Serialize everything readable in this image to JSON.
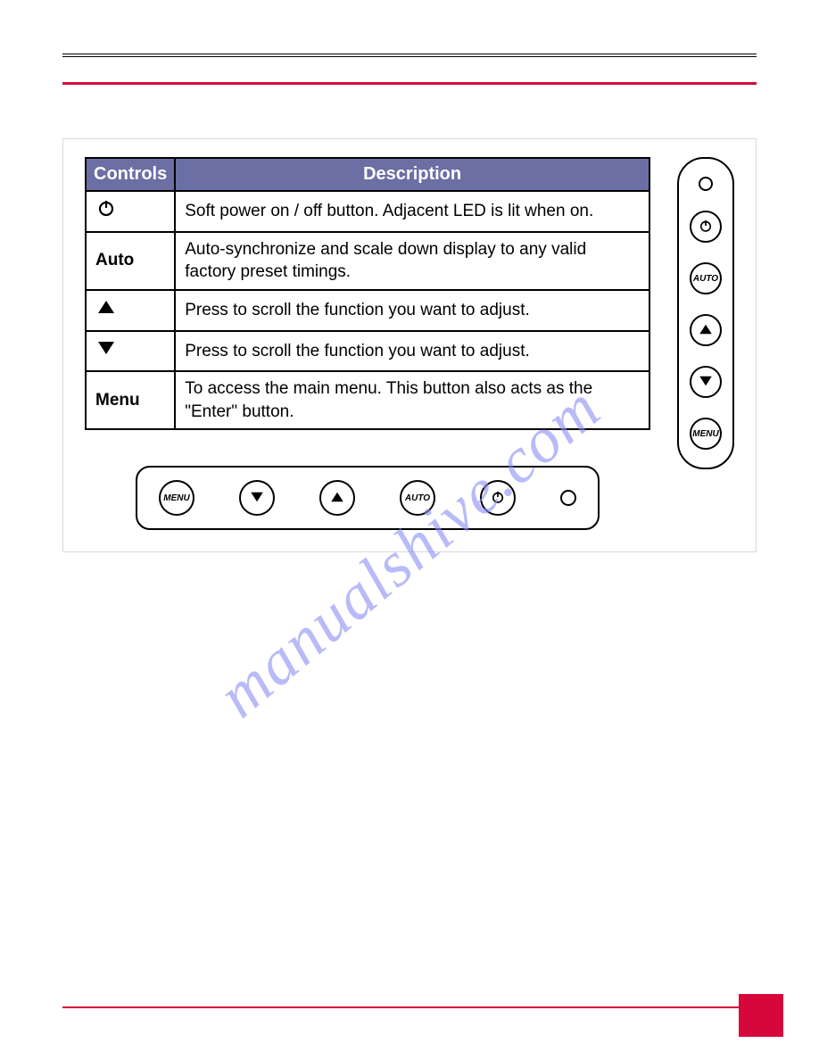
{
  "watermark": "manualshive.com",
  "table": {
    "headers": {
      "controls": "Controls",
      "description": "Description"
    },
    "rows": [
      {
        "control_type": "power",
        "label": "",
        "desc": "Soft power on / off button. Adjacent LED is lit when on."
      },
      {
        "control_type": "text",
        "label": "Auto",
        "desc": "Auto-synchronize and scale down display to any valid factory preset timings."
      },
      {
        "control_type": "up",
        "label": "",
        "desc": "Press to scroll the function you want to adjust."
      },
      {
        "control_type": "down",
        "label": "",
        "desc": "Press to scroll the function you want to adjust."
      },
      {
        "control_type": "text",
        "label": "Menu",
        "desc": "To access the main menu. This button also acts as the \"Enter\" button."
      }
    ]
  },
  "horiz_buttons": [
    {
      "type": "menu",
      "label": "MENU"
    },
    {
      "type": "down",
      "label": ""
    },
    {
      "type": "up",
      "label": ""
    },
    {
      "type": "auto",
      "label": "AUTO"
    },
    {
      "type": "power",
      "label": ""
    },
    {
      "type": "led",
      "label": ""
    }
  ],
  "vert_buttons": [
    {
      "type": "led",
      "label": ""
    },
    {
      "type": "power",
      "label": ""
    },
    {
      "type": "auto",
      "label": "AUTO"
    },
    {
      "type": "up",
      "label": ""
    },
    {
      "type": "down",
      "label": ""
    },
    {
      "type": "menu",
      "label": "MENU"
    }
  ],
  "colors": {
    "header_bg": "#6b6fa4",
    "accent": "#d6083b",
    "watermark": "#8a8ef5"
  }
}
